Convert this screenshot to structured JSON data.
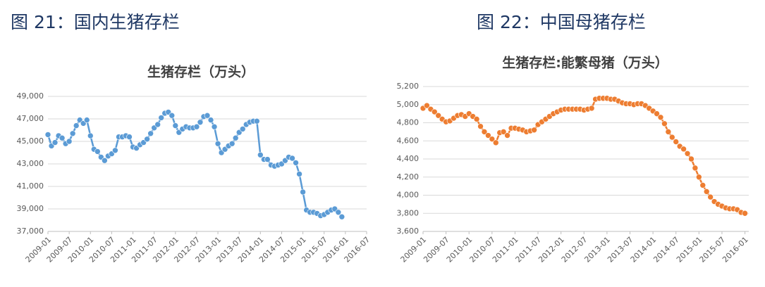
{
  "chart_data": [
    {
      "type": "line",
      "caption": "图 21：国内生猪存栏",
      "title": "生猪存栏（万头）",
      "color": "#5b9bd5",
      "grid": true,
      "x": [
        "2009-01",
        "2009-02",
        "2009-03",
        "2009-04",
        "2009-05",
        "2009-06",
        "2009-07",
        "2009-08",
        "2009-09",
        "2009-10",
        "2009-11",
        "2009-12",
        "2010-01",
        "2010-02",
        "2010-03",
        "2010-04",
        "2010-05",
        "2010-06",
        "2010-07",
        "2010-08",
        "2010-09",
        "2010-10",
        "2010-11",
        "2010-12",
        "2011-01",
        "2011-02",
        "2011-03",
        "2011-04",
        "2011-05",
        "2011-06",
        "2011-07",
        "2011-08",
        "2011-09",
        "2011-10",
        "2011-11",
        "2011-12",
        "2012-01",
        "2012-02",
        "2012-03",
        "2012-04",
        "2012-05",
        "2012-06",
        "2012-07",
        "2012-08",
        "2012-09",
        "2012-10",
        "2012-11",
        "2012-12",
        "2013-01",
        "2013-02",
        "2013-03",
        "2013-04",
        "2013-05",
        "2013-06",
        "2013-07",
        "2013-08",
        "2013-09",
        "2013-10",
        "2013-11",
        "2013-12",
        "2014-01",
        "2014-02",
        "2014-03",
        "2014-04",
        "2014-05",
        "2014-06",
        "2014-07",
        "2014-08",
        "2014-09",
        "2014-10",
        "2014-11",
        "2014-12",
        "2015-01",
        "2015-02",
        "2015-03",
        "2015-04",
        "2015-05",
        "2015-06",
        "2015-07",
        "2015-08",
        "2015-09",
        "2015-10",
        "2015-11",
        "2015-12"
      ],
      "values": [
        45600,
        44600,
        44900,
        45500,
        45300,
        44800,
        45000,
        45700,
        46400,
        46900,
        46600,
        46900,
        45500,
        44300,
        44100,
        43600,
        43300,
        43700,
        43900,
        44200,
        45400,
        45400,
        45500,
        45400,
        44500,
        44400,
        44700,
        44900,
        45200,
        45700,
        46200,
        46500,
        47100,
        47500,
        47600,
        47300,
        46400,
        45800,
        46100,
        46300,
        46200,
        46200,
        46300,
        46700,
        47200,
        47300,
        46900,
        46300,
        44800,
        44000,
        44300,
        44600,
        44800,
        45300,
        45800,
        46100,
        46500,
        46700,
        46800,
        46800,
        43800,
        43400,
        43400,
        42900,
        42800,
        42900,
        43000,
        43300,
        43600,
        43500,
        43100,
        42100,
        40500,
        38900,
        38700,
        38700,
        38600,
        38400,
        38500,
        38700,
        38900,
        39000,
        38700,
        38300
      ],
      "xlim": [
        "2009-01",
        "2016-07"
      ],
      "xticks": [
        "2009-01",
        "2009-07",
        "2010-01",
        "2010-07",
        "2011-01",
        "2011-07",
        "2012-01",
        "2012-07",
        "2013-01",
        "2013-07",
        "2014-01",
        "2014-07",
        "2015-01",
        "2015-07",
        "2016-01",
        "2016-07"
      ],
      "ylim": [
        37000,
        49000
      ],
      "yticks": [
        {
          "value": 37000,
          "label": "37,000"
        },
        {
          "value": 39000,
          "label": "39,000"
        },
        {
          "value": 41000,
          "label": "41,000"
        },
        {
          "value": 43000,
          "label": "43,000"
        },
        {
          "value": 45000,
          "label": "45,000"
        },
        {
          "value": 47000,
          "label": "47,000"
        },
        {
          "value": 49000,
          "label": "49,000"
        }
      ]
    },
    {
      "type": "line",
      "caption": "图 22：中国母猪存栏",
      "title": "生猪存栏:能繁母猪（万头）",
      "color": "#ed7d31",
      "grid": true,
      "x": [
        "2009-01",
        "2009-02",
        "2009-03",
        "2009-04",
        "2009-05",
        "2009-06",
        "2009-07",
        "2009-08",
        "2009-09",
        "2009-10",
        "2009-11",
        "2009-12",
        "2010-01",
        "2010-02",
        "2010-03",
        "2010-04",
        "2010-05",
        "2010-06",
        "2010-07",
        "2010-08",
        "2010-09",
        "2010-10",
        "2010-11",
        "2010-12",
        "2011-01",
        "2011-02",
        "2011-03",
        "2011-04",
        "2011-05",
        "2011-06",
        "2011-07",
        "2011-08",
        "2011-09",
        "2011-10",
        "2011-11",
        "2011-12",
        "2012-01",
        "2012-02",
        "2012-03",
        "2012-04",
        "2012-05",
        "2012-06",
        "2012-07",
        "2012-08",
        "2012-09",
        "2012-10",
        "2012-11",
        "2012-12",
        "2013-01",
        "2013-02",
        "2013-03",
        "2013-04",
        "2013-05",
        "2013-06",
        "2013-07",
        "2013-08",
        "2013-09",
        "2013-10",
        "2013-11",
        "2013-12",
        "2014-01",
        "2014-02",
        "2014-03",
        "2014-04",
        "2014-05",
        "2014-06",
        "2014-07",
        "2014-08",
        "2014-09",
        "2014-10",
        "2014-11",
        "2014-12",
        "2015-01",
        "2015-02",
        "2015-03",
        "2015-04",
        "2015-05",
        "2015-06",
        "2015-07",
        "2015-08",
        "2015-09",
        "2015-10",
        "2015-11",
        "2015-12",
        "2016-01"
      ],
      "values": [
        4960,
        4990,
        4950,
        4920,
        4880,
        4840,
        4810,
        4820,
        4850,
        4880,
        4890,
        4870,
        4900,
        4870,
        4840,
        4760,
        4700,
        4660,
        4620,
        4580,
        4690,
        4700,
        4660,
        4740,
        4740,
        4730,
        4720,
        4700,
        4710,
        4720,
        4780,
        4810,
        4840,
        4870,
        4900,
        4920,
        4940,
        4950,
        4950,
        4950,
        4950,
        4950,
        4940,
        4950,
        4960,
        5060,
        5070,
        5070,
        5070,
        5060,
        5060,
        5040,
        5020,
        5010,
        5010,
        5000,
        5010,
        5010,
        4990,
        4960,
        4930,
        4900,
        4860,
        4790,
        4700,
        4640,
        4590,
        4540,
        4510,
        4460,
        4400,
        4300,
        4200,
        4110,
        4040,
        3980,
        3930,
        3900,
        3880,
        3860,
        3850,
        3850,
        3840,
        3810,
        3800
      ],
      "xlim": [
        "2009-01",
        "2016-02"
      ],
      "xticks": [
        "2009-01",
        "2009-07",
        "2010-01",
        "2010-07",
        "2011-01",
        "2011-07",
        "2012-01",
        "2012-07",
        "2013-01",
        "2013-07",
        "2014-01",
        "2014-07",
        "2015-01",
        "2015-07",
        "2016-01"
      ],
      "ylim": [
        3600,
        5200
      ],
      "yticks": [
        {
          "value": 3600,
          "label": "3,600"
        },
        {
          "value": 3800,
          "label": "3,800"
        },
        {
          "value": 4000,
          "label": "4,000"
        },
        {
          "value": 4200,
          "label": "4,200"
        },
        {
          "value": 4400,
          "label": "4,400"
        },
        {
          "value": 4600,
          "label": "4,600"
        },
        {
          "value": 4800,
          "label": "4,800"
        },
        {
          "value": 5000,
          "label": "5,000"
        },
        {
          "value": 5200,
          "label": "5,200"
        }
      ]
    }
  ]
}
